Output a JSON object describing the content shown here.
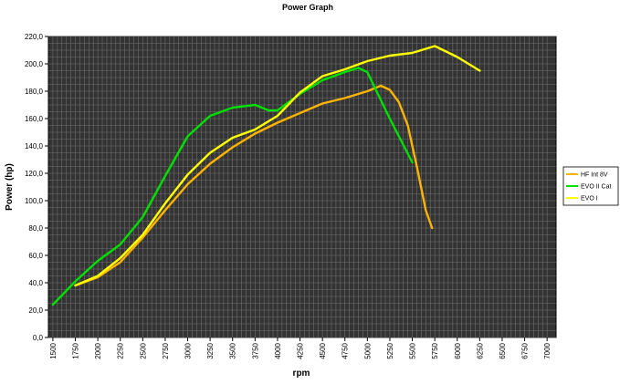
{
  "chart_data": {
    "type": "line",
    "title": "Power Graph",
    "xlabel": "rpm",
    "ylabel": "Power (hp)",
    "xlim": [
      1450,
      7100
    ],
    "ylim": [
      0,
      220
    ],
    "x_ticks": [
      1500,
      1750,
      2000,
      2250,
      2500,
      2750,
      3000,
      3250,
      3500,
      3750,
      4000,
      4250,
      4500,
      4750,
      5000,
      5250,
      5500,
      5750,
      6000,
      6250,
      6500,
      6750,
      7000
    ],
    "y_ticks": [
      "0,0",
      "20,0",
      "40,0",
      "60,0",
      "80,0",
      "100,0",
      "120,0",
      "140,0",
      "160,0",
      "180,0",
      "200,0",
      "220,0"
    ],
    "grid": true,
    "plot_background": "#333333",
    "grid_color": "#707070",
    "legend_position": "right",
    "series": [
      {
        "name": "HF Int 8V",
        "color": "#ffb400",
        "points": [
          [
            1750,
            38
          ],
          [
            2000,
            44
          ],
          [
            2250,
            55
          ],
          [
            2500,
            73
          ],
          [
            2750,
            93
          ],
          [
            3000,
            112
          ],
          [
            3250,
            127
          ],
          [
            3500,
            139
          ],
          [
            3750,
            149
          ],
          [
            4000,
            157
          ],
          [
            4250,
            164
          ],
          [
            4500,
            171
          ],
          [
            4750,
            175
          ],
          [
            5000,
            180
          ],
          [
            5150,
            184
          ],
          [
            5250,
            181
          ],
          [
            5350,
            172
          ],
          [
            5450,
            155
          ],
          [
            5550,
            125
          ],
          [
            5650,
            93
          ],
          [
            5720,
            80
          ]
        ]
      },
      {
        "name": "EVO II Cat",
        "color": "#00e000",
        "points": [
          [
            1500,
            24
          ],
          [
            1750,
            41
          ],
          [
            2000,
            56
          ],
          [
            2250,
            68
          ],
          [
            2500,
            88
          ],
          [
            2750,
            118
          ],
          [
            3000,
            147
          ],
          [
            3250,
            162
          ],
          [
            3500,
            168
          ],
          [
            3750,
            170
          ],
          [
            3900,
            166
          ],
          [
            4000,
            166
          ],
          [
            4250,
            178
          ],
          [
            4500,
            188
          ],
          [
            4750,
            194
          ],
          [
            4900,
            197
          ],
          [
            5000,
            194
          ],
          [
            5250,
            160
          ],
          [
            5500,
            128
          ]
        ]
      },
      {
        "name": "EVO I",
        "color": "#ffff00",
        "points": [
          [
            1750,
            38
          ],
          [
            2000,
            45
          ],
          [
            2250,
            58
          ],
          [
            2500,
            75
          ],
          [
            2750,
            98
          ],
          [
            3000,
            119
          ],
          [
            3250,
            135
          ],
          [
            3500,
            146
          ],
          [
            3750,
            152
          ],
          [
            4000,
            162
          ],
          [
            4250,
            179
          ],
          [
            4500,
            191
          ],
          [
            4750,
            196
          ],
          [
            5000,
            202
          ],
          [
            5250,
            206
          ],
          [
            5500,
            208
          ],
          [
            5750,
            213
          ],
          [
            6000,
            205
          ],
          [
            6250,
            195
          ]
        ]
      }
    ]
  }
}
